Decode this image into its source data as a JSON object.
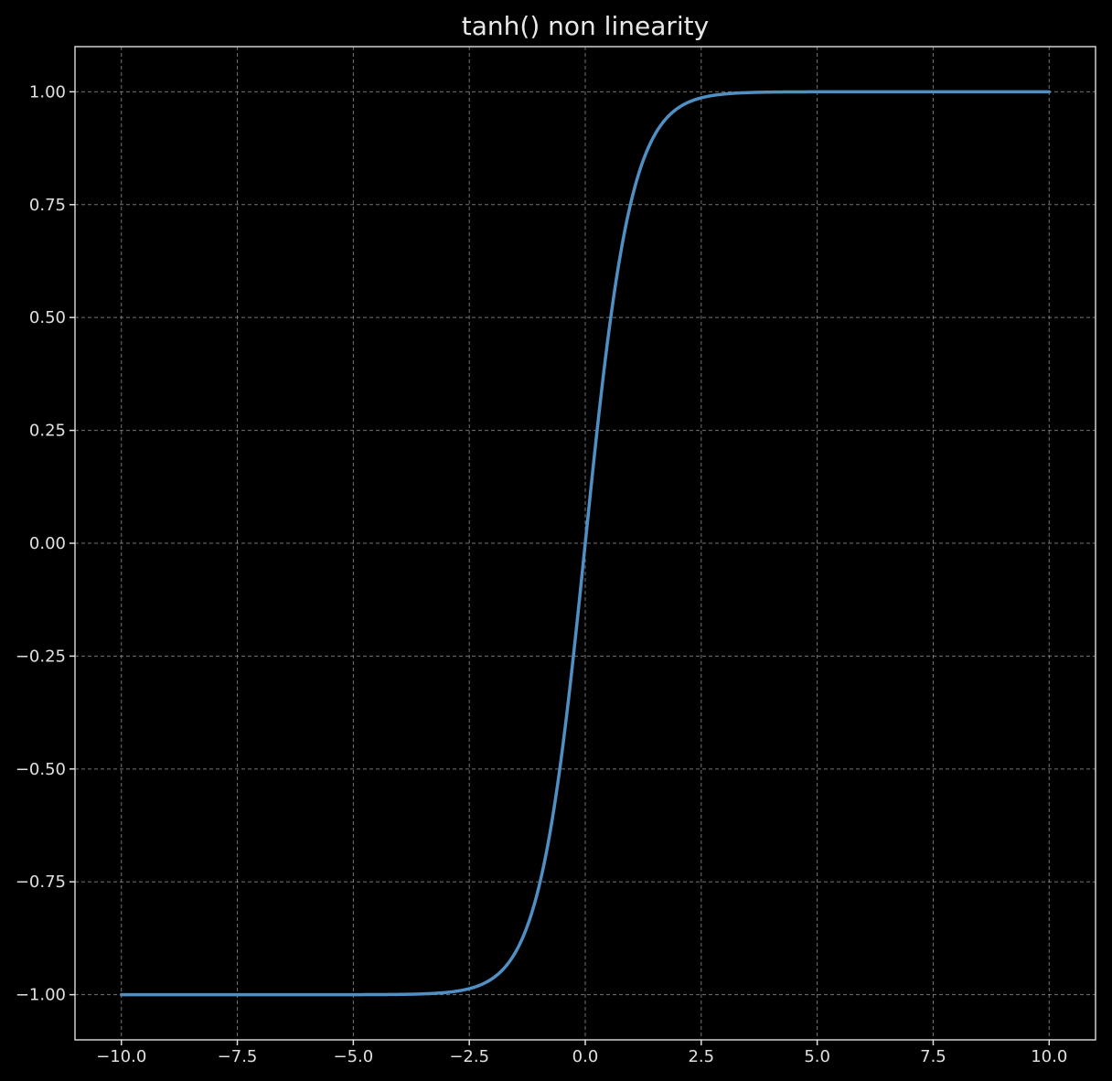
{
  "chart_data": {
    "type": "line",
    "title": "tanh() non linearity",
    "xlabel": "",
    "ylabel": "",
    "xlim": [
      -11.0,
      11.0
    ],
    "ylim": [
      -1.1,
      1.1
    ],
    "grid": true,
    "x_ticks": [
      -10.0,
      -7.5,
      -5.0,
      -2.5,
      0.0,
      2.5,
      5.0,
      7.5,
      10.0
    ],
    "x_tick_labels": [
      "−10.0",
      "−7.5",
      "−5.0",
      "−2.5",
      "0.0",
      "2.5",
      "5.0",
      "7.5",
      "10.0"
    ],
    "y_ticks": [
      -1.0,
      -0.75,
      -0.5,
      -0.25,
      0.0,
      0.25,
      0.5,
      0.75,
      1.0
    ],
    "y_tick_labels": [
      "−1.00",
      "−0.75",
      "−0.50",
      "−0.25",
      "0.00",
      "0.25",
      "0.50",
      "0.75",
      "1.00"
    ],
    "series": [
      {
        "color": "#4f8fc4",
        "x": [
          -10.0,
          -7.5,
          -5.0,
          -4.0,
          -3.5,
          -3.0,
          -2.5,
          -2.0,
          -1.75,
          -1.5,
          -1.25,
          -1.0,
          -0.75,
          -0.5,
          -0.25,
          0.0,
          0.25,
          0.5,
          0.75,
          1.0,
          1.25,
          1.5,
          1.75,
          2.0,
          2.5,
          3.0,
          3.5,
          4.0,
          5.0,
          7.5,
          10.0
        ],
        "y": [
          -1.0,
          -1.0,
          -0.9999,
          -0.9993,
          -0.9982,
          -0.9951,
          -0.9866,
          -0.964,
          -0.9414,
          -0.9051,
          -0.8483,
          -0.7616,
          -0.6351,
          -0.4621,
          -0.2449,
          0.0,
          0.2449,
          0.4621,
          0.6351,
          0.7616,
          0.8483,
          0.9051,
          0.9414,
          0.964,
          0.9866,
          0.9951,
          0.9982,
          0.9993,
          0.9999,
          1.0,
          1.0
        ]
      }
    ]
  },
  "colors": {
    "background": "#000000",
    "frame": "#d0d0d0",
    "grid": "#9a9a9a",
    "text": "#e0e0e0"
  }
}
